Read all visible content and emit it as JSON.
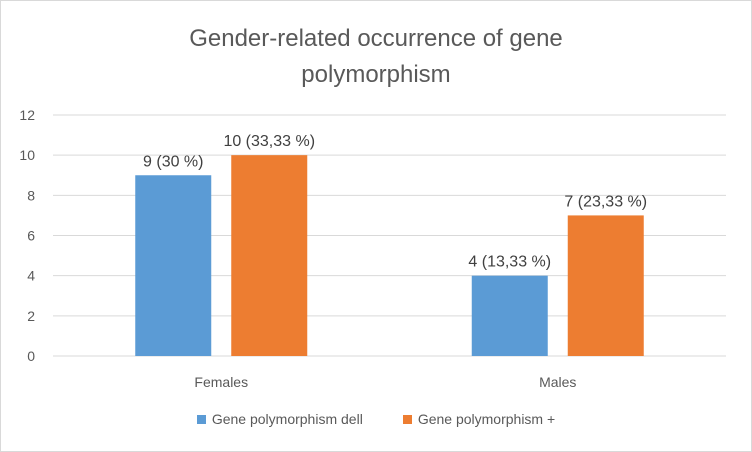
{
  "chart_data": {
    "type": "bar",
    "title_lines": [
      "Gender-related occurrence of gene",
      "polymorphism"
    ],
    "categories": [
      "Females",
      "Males"
    ],
    "series": [
      {
        "name": "Gene polymorphism dell",
        "color": "#5b9bd5",
        "values": [
          9,
          4
        ],
        "labels": [
          "9 (30 %)",
          "4 (13,33 %)"
        ]
      },
      {
        "name": "Gene polymorphism +",
        "color": "#ed7d31",
        "values": [
          10,
          7
        ],
        "labels": [
          "10 (33,33 %)",
          "7 (23,33 %)"
        ]
      }
    ],
    "ylim": [
      0,
      12
    ],
    "yticks": [
      "0",
      "2",
      "4",
      "6",
      "8",
      "10",
      "12"
    ],
    "grid": true,
    "legend_position": "bottom",
    "xlabel": "",
    "ylabel": ""
  }
}
